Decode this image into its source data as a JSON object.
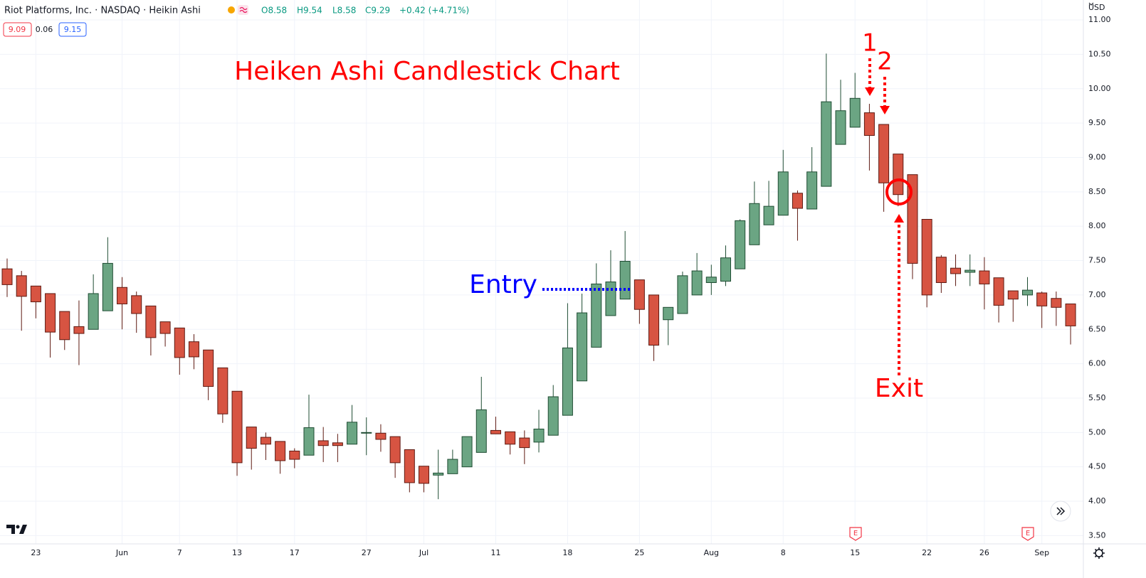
{
  "chart_data": {
    "type": "candlestick",
    "symbol": "Riot Platforms, Inc. · NASDAQ · Heikin Ashi",
    "ohlc_labels": [
      "O8.58",
      "H9.54",
      "L8.58",
      "C9.29",
      "+0.42 (+4.71%)"
    ],
    "price_boxes": [
      "9.09",
      "0.06",
      "9.15"
    ],
    "currency": "USD",
    "title": "Heiken Ashi Candlestick Chart",
    "annotations": [
      "Entry",
      "Exit",
      "1",
      "2"
    ],
    "earnings_labels": [
      "E",
      "E"
    ],
    "title_color": "#ff0000",
    "entry_color": "#0000ff",
    "up_color": "#6ba583",
    "down_color": "#d75442",
    "grid": true,
    "categories": [
      null,
      null,
      "23",
      null,
      null,
      null,
      null,
      null,
      "Jun",
      null,
      null,
      null,
      "7",
      null,
      null,
      null,
      "13",
      null,
      null,
      null,
      "17",
      null,
      null,
      null,
      null,
      "27",
      null,
      null,
      null,
      "Jul",
      null,
      null,
      null,
      null,
      "11",
      null,
      null,
      null,
      null,
      "18",
      null,
      null,
      null,
      null,
      "25",
      null,
      null,
      null,
      null,
      "Aug",
      null,
      null,
      null,
      null,
      "8",
      null,
      null,
      null,
      null,
      "15",
      null,
      null,
      null,
      null,
      "22",
      null,
      null,
      null,
      "26",
      null,
      null,
      null,
      "Sep",
      null,
      null
    ],
    "open": [
      7.38,
      7.28,
      7.13,
      7.02,
      6.76,
      6.54,
      6.5,
      6.77,
      7.11,
      6.99,
      6.84,
      6.61,
      6.52,
      6.32,
      6.2,
      5.94,
      5.6,
      5.08,
      4.93,
      4.87,
      4.73,
      4.67,
      4.88,
      4.85,
      4.83,
      4.99,
      4.99,
      4.94,
      4.75,
      4.51,
      4.38,
      4.4,
      4.5,
      4.71,
      5.03,
      5.01,
      4.92,
      4.86,
      4.96,
      5.25,
      5.75,
      6.24,
      6.7,
      6.94,
      7.22,
      7.0,
      6.64,
      6.73,
      7.0,
      7.18,
      7.2,
      7.38,
      7.73,
      8.02,
      8.16,
      8.48,
      8.25,
      8.58,
      9.19,
      9.44,
      9.65,
      9.48,
      9.05,
      8.75,
      8.1,
      7.55,
      7.39,
      7.33,
      7.35,
      7.25,
      7.06,
      7.0,
      7.03,
      6.95,
      6.87
    ],
    "high": [
      7.53,
      7.35,
      7.13,
      7.02,
      6.76,
      6.92,
      7.3,
      7.84,
      7.26,
      7.05,
      6.84,
      6.61,
      6.52,
      6.43,
      6.2,
      5.94,
      5.6,
      5.08,
      5.0,
      4.87,
      4.77,
      5.55,
      5.08,
      4.98,
      5.4,
      5.22,
      5.12,
      4.94,
      4.75,
      4.51,
      4.75,
      4.75,
      4.94,
      5.81,
      5.23,
      5.01,
      5.03,
      5.33,
      5.69,
      6.88,
      7.02,
      7.46,
      7.65,
      7.93,
      7.22,
      7.0,
      6.82,
      7.34,
      7.61,
      7.44,
      7.72,
      8.1,
      8.65,
      8.66,
      9.11,
      8.52,
      9.15,
      10.51,
      10.13,
      10.23,
      9.78,
      9.48,
      9.05,
      8.75,
      8.1,
      7.58,
      7.59,
      7.59,
      7.55,
      7.25,
      7.06,
      7.26,
      7.05,
      7.05,
      6.87
    ],
    "low": [
      6.97,
      6.48,
      6.66,
      6.09,
      6.2,
      5.98,
      6.5,
      6.77,
      6.5,
      6.45,
      6.12,
      6.25,
      5.84,
      5.92,
      5.47,
      5.14,
      4.37,
      4.46,
      4.6,
      4.4,
      4.48,
      4.67,
      4.57,
      4.57,
      4.83,
      4.67,
      4.72,
      4.34,
      4.13,
      4.13,
      4.03,
      4.4,
      4.5,
      4.71,
      4.98,
      4.68,
      4.54,
      4.71,
      4.96,
      5.25,
      5.75,
      6.24,
      6.7,
      6.94,
      6.58,
      6.04,
      6.27,
      6.73,
      7.0,
      7.0,
      7.13,
      7.38,
      7.73,
      8.02,
      8.16,
      7.79,
      8.25,
      8.58,
      9.19,
      9.44,
      8.81,
      8.21,
      8.29,
      7.23,
      6.82,
      7.03,
      7.13,
      7.13,
      6.79,
      6.6,
      6.61,
      6.84,
      6.52,
      6.55,
      6.28
    ],
    "close": [
      7.15,
      6.98,
      6.9,
      6.46,
      6.35,
      6.44,
      7.02,
      7.46,
      6.87,
      6.73,
      6.38,
      6.44,
      6.09,
      6.1,
      5.67,
      5.27,
      4.56,
      4.77,
      4.83,
      4.59,
      4.61,
      5.07,
      4.81,
      4.81,
      5.15,
      5.0,
      4.9,
      4.56,
      4.27,
      4.26,
      4.41,
      4.61,
      4.94,
      5.33,
      4.98,
      4.83,
      4.78,
      5.05,
      5.52,
      6.23,
      6.74,
      7.16,
      7.19,
      7.49,
      6.79,
      6.27,
      6.82,
      7.28,
      7.35,
      7.26,
      7.54,
      8.08,
      8.33,
      8.29,
      8.79,
      8.26,
      8.79,
      9.81,
      9.68,
      9.86,
      9.32,
      8.63,
      8.46,
      7.46,
      7.0,
      7.18,
      7.31,
      7.36,
      7.16,
      6.85,
      6.94,
      7.07,
      6.84,
      6.82,
      6.55
    ],
    "ylim": [
      3.38,
      11.29
    ],
    "yticks": [
      {
        "value": 3.5,
        "label": "3.50"
      },
      {
        "value": 4,
        "label": "4.00"
      },
      {
        "value": 4.5,
        "label": "4.50"
      },
      {
        "value": 5,
        "label": "5.00"
      },
      {
        "value": 5.5,
        "label": "5.50"
      },
      {
        "value": 6,
        "label": "6.00"
      },
      {
        "value": 6.5,
        "label": "6.50"
      },
      {
        "value": 7,
        "label": "7.00"
      },
      {
        "value": 7.5,
        "label": "7.50"
      },
      {
        "value": 8,
        "label": "8.00"
      },
      {
        "value": 8.5,
        "label": "8.50"
      },
      {
        "value": 9,
        "label": "9.00"
      },
      {
        "value": 9.5,
        "label": "9.50"
      },
      {
        "value": 10,
        "label": "10.00"
      },
      {
        "value": 10.5,
        "label": "10.50"
      },
      {
        "value": 11,
        "label": "11.00"
      }
    ]
  }
}
